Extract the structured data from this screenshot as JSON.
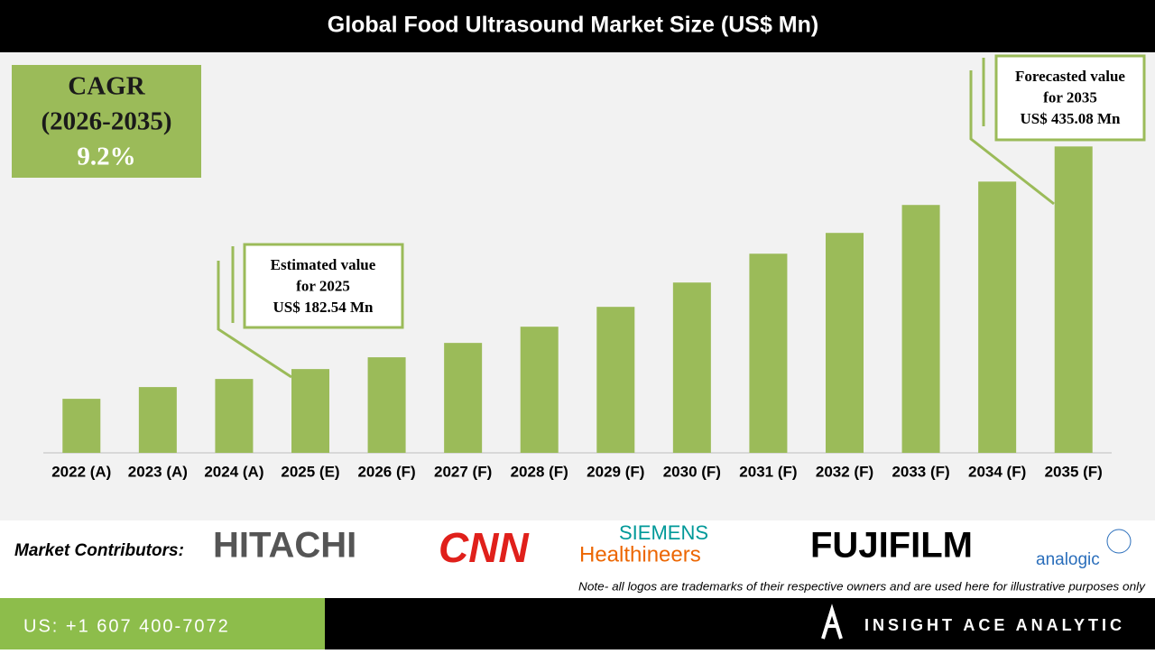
{
  "chart_data": {
    "type": "bar",
    "title": "Global Food Ultrasound Market Size (US$ Mn)",
    "categories": [
      "2022 (A)",
      "2023 (A)",
      "2024 (A)",
      "2025 (E)",
      "2026 (F)",
      "2027 (F)",
      "2028 (F)",
      "2029 (F)",
      "2030 (F)",
      "2031 (F)",
      "2032 (F)",
      "2033 (F)",
      "2034 (F)",
      "2035 (F)"
    ],
    "values": [
      148.8,
      162.1,
      171.3,
      182.54,
      195.9,
      212.2,
      230.6,
      253.1,
      280.7,
      313.4,
      337.0,
      368.7,
      395.2,
      435.08
    ],
    "color": "#9bbb59",
    "ylim": [
      87.5,
      460
    ],
    "cagr": [
      "CAGR",
      "(2026-2035)",
      "9.2%"
    ],
    "annotations": [
      {
        "lines": [
          "Estimated value",
          "for 2025",
          "US$ 182.54 Mn"
        ]
      },
      {
        "lines": [
          "Forecasted value",
          "for 2035",
          "US$ 435.08 Mn"
        ]
      }
    ]
  },
  "contributors": {
    "label": "Market Contributors:",
    "logos": [
      "HITACHI",
      "CNN",
      "SIEMENS",
      "Healthineers",
      "FUJIFILM",
      "analogic"
    ],
    "note": "Note- all logos are trademarks of their respective owners and are used here for illustrative purposes only"
  },
  "footer": {
    "phone": "US: +1 607 400-7072",
    "brand": "INSIGHT ACE ANALYTIC"
  }
}
